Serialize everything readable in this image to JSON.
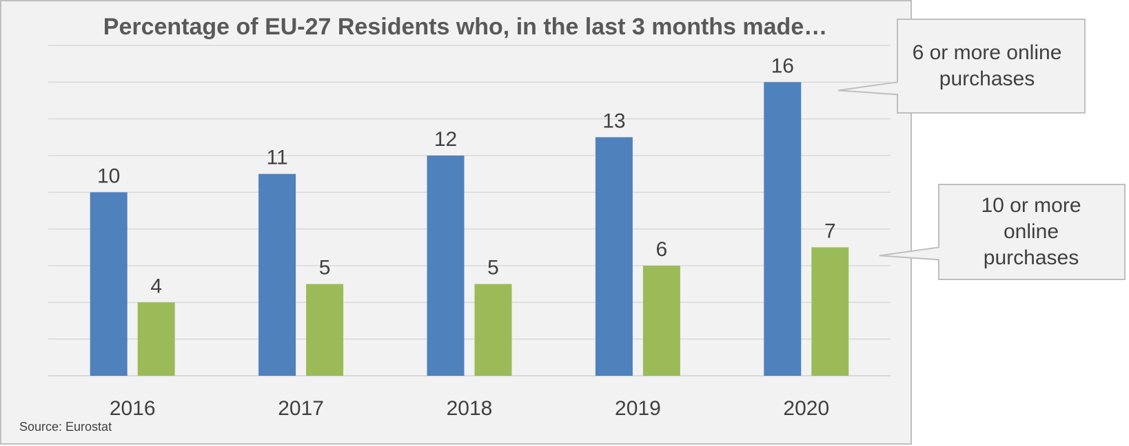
{
  "chart_data": {
    "type": "bar",
    "title": "Percentage of EU-27 Residents who, in the last 3 months made…",
    "categories": [
      "2016",
      "2017",
      "2018",
      "2019",
      "2020"
    ],
    "series": [
      {
        "name": "6 or more online purchases",
        "color": "#4f81bd",
        "values": [
          10,
          11,
          12,
          13,
          16
        ]
      },
      {
        "name": "10 or more online purchases",
        "color": "#9bbb59",
        "values": [
          4,
          5,
          5,
          6,
          7
        ]
      }
    ],
    "ylim": [
      0,
      18
    ],
    "grid": true,
    "legend": "callouts-right",
    "xlabel": "",
    "ylabel": ""
  },
  "callouts": [
    {
      "lines": [
        "6 or more online",
        "purchases"
      ],
      "series": 0
    },
    {
      "lines": [
        "10 or more",
        "online",
        "purchases"
      ],
      "series": 1
    }
  ],
  "source": "Source: Eurostat",
  "colors": {
    "panel_bg": "#f2f2f2",
    "panel_border": "#bfbfbf",
    "gridline": "#d9d9d9"
  }
}
